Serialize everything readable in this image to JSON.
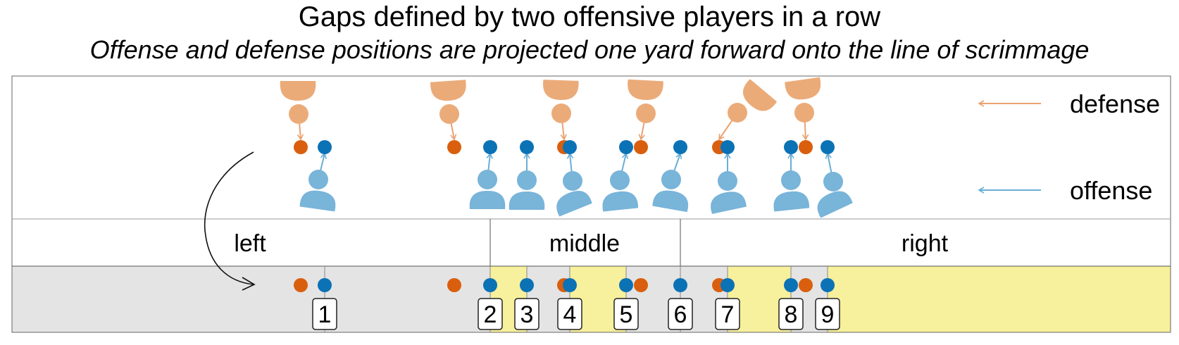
{
  "title": "Gaps defined by two offensive players in a row",
  "subtitle": "Offense and defense positions are projected one yard forward onto the line of scrimmage",
  "legend": {
    "defense": "defense",
    "offense": "offense"
  },
  "regions": {
    "left": "left",
    "middle": "middle",
    "right": "right"
  },
  "gaps": [
    "1",
    "2",
    "3",
    "4",
    "5",
    "6",
    "7",
    "8",
    "9"
  ],
  "colors": {
    "defense_body": "#ebab79",
    "defense_dot": "#d95f0e",
    "offense_body": "#79b4d9",
    "offense_dot": "#0b72b5",
    "gap_yellow": "#f7f09c",
    "gap_gray": "#e4e4e4"
  }
}
